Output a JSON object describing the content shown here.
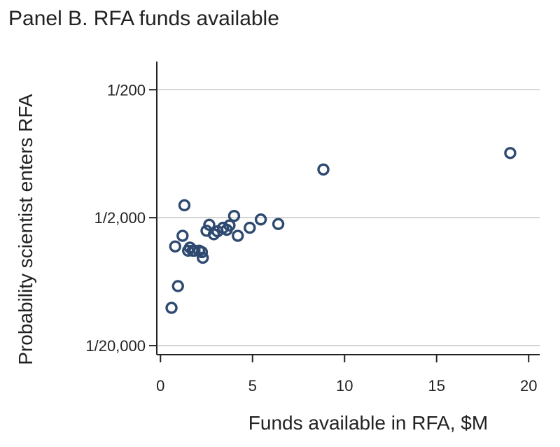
{
  "chart_data": {
    "type": "scatter",
    "title": "Panel B. RFA funds available",
    "xlabel": "Funds available in RFA, $M",
    "ylabel": "Probability scientist enters RFA",
    "x_ticks": [
      0,
      5,
      10,
      15,
      20
    ],
    "x_tick_labels": [
      "0",
      "5",
      "10",
      "15",
      "20"
    ],
    "xlim": [
      -0.2,
      20.6
    ],
    "y_scale": "log",
    "y_ticks": [
      5e-05,
      0.0005,
      0.005
    ],
    "y_tick_labels": [
      "1/20,000",
      "1/2,000",
      "1/200"
    ],
    "ylim": [
      4.25e-05,
      0.0083
    ],
    "grid": {
      "y": true,
      "x": false
    },
    "marker": "hollow-circle",
    "marker_color": "#2e4a70",
    "grid_color": "#c8c8c8",
    "points": [
      {
        "x": 0.6,
        "y": 9.87e-05
      },
      {
        "x": 0.95,
        "y": 0.000146
      },
      {
        "x": 0.8,
        "y": 0.000298
      },
      {
        "x": 1.2,
        "y": 0.000361
      },
      {
        "x": 1.3,
        "y": 0.000625
      },
      {
        "x": 1.5,
        "y": 0.000276
      },
      {
        "x": 1.6,
        "y": 0.000292
      },
      {
        "x": 1.75,
        "y": 0.000276
      },
      {
        "x": 1.85,
        "y": 0.000276
      },
      {
        "x": 2.1,
        "y": 0.000276
      },
      {
        "x": 2.25,
        "y": 0.000269
      },
      {
        "x": 2.3,
        "y": 0.000243
      },
      {
        "x": 2.5,
        "y": 0.000395
      },
      {
        "x": 2.65,
        "y": 0.00044
      },
      {
        "x": 2.9,
        "y": 0.000371
      },
      {
        "x": 3.1,
        "y": 0.000391
      },
      {
        "x": 3.4,
        "y": 0.000417
      },
      {
        "x": 3.6,
        "y": 0.000402
      },
      {
        "x": 3.75,
        "y": 0.000435
      },
      {
        "x": 4.0,
        "y": 0.000516
      },
      {
        "x": 4.2,
        "y": 0.000361
      },
      {
        "x": 4.85,
        "y": 0.000417
      },
      {
        "x": 5.45,
        "y": 0.000484
      },
      {
        "x": 6.4,
        "y": 0.000446
      },
      {
        "x": 8.85,
        "y": 0.00119
      },
      {
        "x": 19.0,
        "y": 0.0016
      }
    ]
  }
}
